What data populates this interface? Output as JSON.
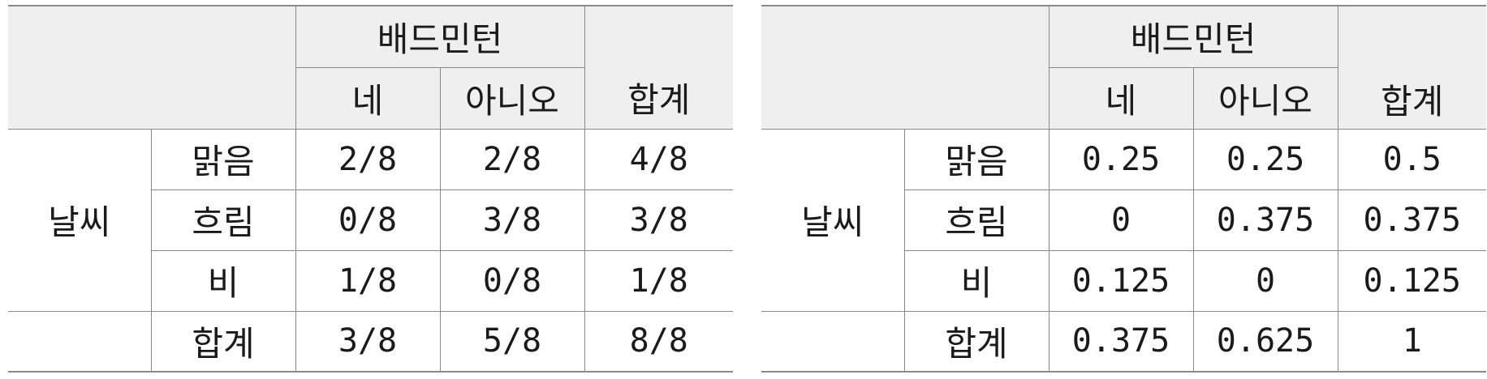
{
  "tables": [
    {
      "group_header": "배드민턴",
      "col_yes": "네",
      "col_no": "아니오",
      "col_total": "합계",
      "row_group": "날씨",
      "rows": [
        {
          "label": "맑음",
          "yes": "2/8",
          "no": "2/8",
          "total": "4/8"
        },
        {
          "label": "흐림",
          "yes": "0/8",
          "no": "3/8",
          "total": "3/8"
        },
        {
          "label": "비",
          "yes": "1/8",
          "no": "0/8",
          "total": "1/8"
        }
      ],
      "total_row": {
        "label": "합계",
        "yes": "3/8",
        "no": "5/8",
        "total": "8/8"
      }
    },
    {
      "group_header": "배드민턴",
      "col_yes": "네",
      "col_no": "아니오",
      "col_total": "합계",
      "row_group": "날씨",
      "rows": [
        {
          "label": "맑음",
          "yes": "0.25",
          "no": "0.25",
          "total": "0.5"
        },
        {
          "label": "흐림",
          "yes": "0",
          "no": "0.375",
          "total": "0.375"
        },
        {
          "label": "비",
          "yes": "0.125",
          "no": "0",
          "total": "0.125"
        }
      ],
      "total_row": {
        "label": "합계",
        "yes": "0.375",
        "no": "0.625",
        "total": "1"
      }
    }
  ],
  "colors": {
    "header_bg": "#efefef",
    "border": "#8a8a8a",
    "text": "#1a1a1a"
  }
}
